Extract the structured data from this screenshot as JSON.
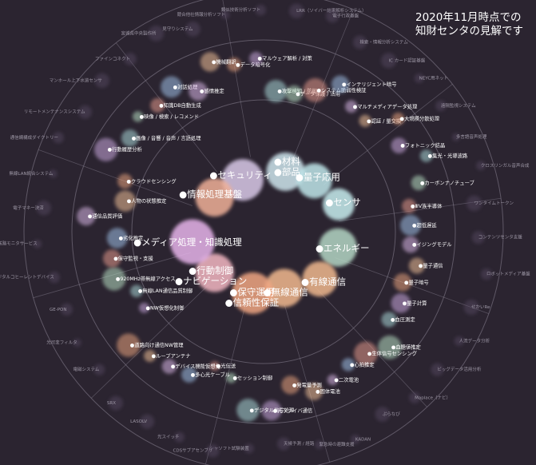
{
  "caption": {
    "line1": "2020年11月時点での",
    "line2": "知財センタの見解です"
  },
  "colors": {
    "background": "#2b2430",
    "ring": "#8a8494",
    "spoke": "#8a8494",
    "label": "#ffffff",
    "outer_label": "#9e98a6"
  },
  "sectors": [
    {
      "name": "セキュリティ"
    },
    {
      "name": "材料 / 部品"
    },
    {
      "name": "量子応用"
    },
    {
      "name": "センサ"
    },
    {
      "name": "エネルギー"
    },
    {
      "name": "有線通信"
    },
    {
      "name": "無線通信"
    },
    {
      "name": "保守運用 / 信頼性保証"
    },
    {
      "name": "行動制御 / ナビゲーション"
    },
    {
      "name": "メディア処理・知識処理"
    },
    {
      "name": "情報処理基盤"
    }
  ],
  "ring_labels": [
    "データ暗号化",
    "マルウェア解析 / 対策",
    "攻撃検知 / 防御",
    "データ保護 / 活用",
    "システム脆弱性検証",
    "インテリジェント暗号",
    "マルチメディアデータ処理",
    "認証 / 量交換",
    "大規模分散処理",
    "フォトニック結晶",
    "集光・光導波路",
    "カーボンナノチューブ",
    "ⅢⅤ族半導体",
    "超低遅延",
    "イジングモデル",
    "量子通信",
    "量子暗号",
    "量子計算",
    "血圧測定",
    "血糖値推定",
    "生体信号センシング",
    "心拍推定",
    "二次電池",
    "固体電池",
    "発電量予測",
    "光ファイバ通信",
    "デジタル信号処理",
    "セッション制御",
    "光伝送",
    "多心光ケーブル",
    "デバイス機能仮想化",
    "ループアンテナ",
    "道路向け通信NW管理",
    "NW仮想化制御",
    "無線LAN通信品質制御",
    "920MHz帯無線アクセス",
    "保守監視・支援",
    "劣化推定",
    "通信品質評価",
    "人物の状態推定",
    "クラウドセンシング",
    "行動履歴分析",
    "画像 / 音響 / 音声 / 言語処理",
    "映像 / 検索 / レコメンド",
    "知識DB自動生成",
    "対話処理",
    "感情推定",
    "機械翻訳"
  ],
  "outer_labels": [
    "競合他社情報分析ソフト",
    "類似技術分析ソフト",
    "LRR（ソイバー結果解析システム）",
    "電子行政基盤",
    "検索・情報分析システム",
    "IC カード認証基盤",
    "NEYC用ネット",
    "遠隔監視システム",
    "多言語音声処理",
    "クロスリンガル音声合成",
    "ワンタイムトークン",
    "コンテンツセンタ支援",
    "ロボットメディア基盤",
    "せかいRe",
    "人流データ分析",
    "ビッグデータ活用分析",
    "Maplace（ナビ）",
    "ぷらなび",
    "KADAN",
    "緊急時の避難支援",
    "天候予測 / 経路",
    "シャソフト試験装置",
    "CDSサブアセンブリ",
    "光スイッチ",
    "LASOLV",
    "SRX",
    "電磁システム",
    "光可変フィルタ",
    "GE-PON",
    "デジタルコヒーレントデバイス",
    "伝送路モニタサービス",
    "電子マネー決済",
    "無線LAN統合システム",
    "通信網構成ダイクトリー",
    "リモートメンテナンスシステム",
    "マンホール上下水道センサ",
    "ファインコネクト",
    "宮城県中央製作所",
    "見守りシステム"
  ]
}
